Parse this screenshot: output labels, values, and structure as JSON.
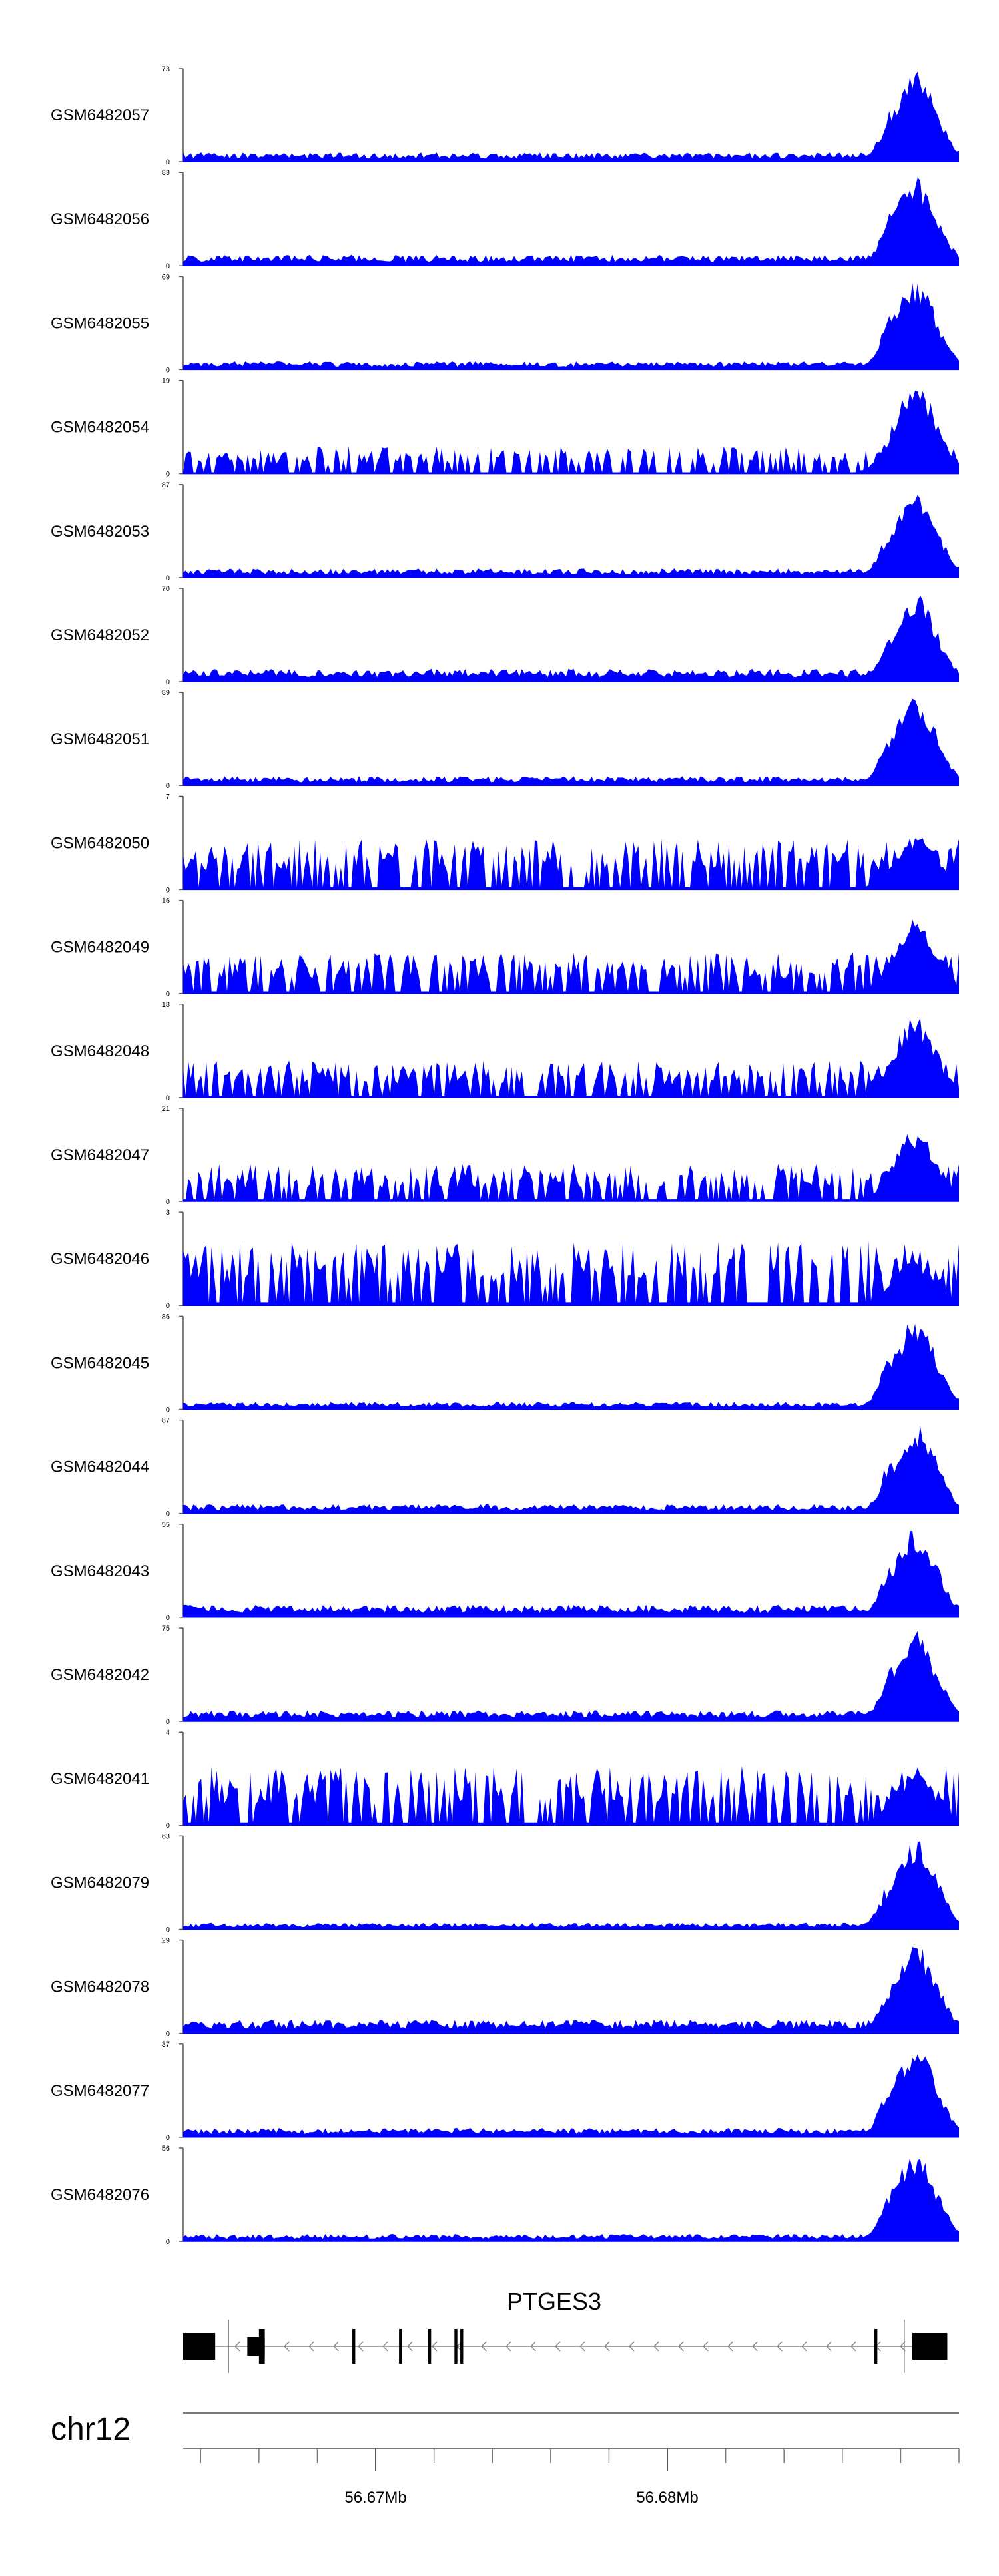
{
  "chart_data": {
    "type": "area",
    "tracks": [
      {
        "name": "GSM6482057",
        "ymin": "0",
        "ymax": "73",
        "max": 73,
        "noise": 0.1,
        "peak": 1.0,
        "seed": 11
      },
      {
        "name": "GSM6482056",
        "ymin": "0",
        "ymax": "83",
        "max": 83,
        "noise": 0.12,
        "peak": 1.0,
        "seed": 12
      },
      {
        "name": "GSM6482055",
        "ymin": "0",
        "ymax": "69",
        "max": 69,
        "noise": 0.09,
        "peak": 1.0,
        "seed": 13
      },
      {
        "name": "GSM6482054",
        "ymin": "0",
        "ymax": "19",
        "max": 19,
        "noise": 0.3,
        "peak": 1.0,
        "seed": 14
      },
      {
        "name": "GSM6482053",
        "ymin": "0",
        "ymax": "87",
        "max": 87,
        "noise": 0.1,
        "peak": 1.0,
        "seed": 15
      },
      {
        "name": "GSM6482052",
        "ymin": "0",
        "ymax": "70",
        "max": 70,
        "noise": 0.14,
        "peak": 1.0,
        "seed": 16
      },
      {
        "name": "GSM6482051",
        "ymin": "0",
        "ymax": "89",
        "max": 89,
        "noise": 0.1,
        "peak": 1.0,
        "seed": 17
      },
      {
        "name": "GSM6482050",
        "ymin": "0",
        "ymax": "7",
        "max": 7,
        "noise": 0.55,
        "peak": 0.6,
        "seed": 18
      },
      {
        "name": "GSM6482049",
        "ymin": "0",
        "ymax": "16",
        "max": 16,
        "noise": 0.45,
        "peak": 0.85,
        "seed": 19
      },
      {
        "name": "GSM6482048",
        "ymin": "0",
        "ymax": "18",
        "max": 18,
        "noise": 0.4,
        "peak": 0.9,
        "seed": 20
      },
      {
        "name": "GSM6482047",
        "ymin": "0",
        "ymax": "21",
        "max": 21,
        "noise": 0.42,
        "peak": 0.8,
        "seed": 21
      },
      {
        "name": "GSM6482046",
        "ymin": "0",
        "ymax": "3",
        "max": 3,
        "noise": 0.7,
        "peak": 0.5,
        "seed": 22
      },
      {
        "name": "GSM6482045",
        "ymin": "0",
        "ymax": "86",
        "max": 86,
        "noise": 0.08,
        "peak": 1.0,
        "seed": 23
      },
      {
        "name": "GSM6482044",
        "ymin": "0",
        "ymax": "87",
        "max": 87,
        "noise": 0.1,
        "peak": 1.0,
        "seed": 24
      },
      {
        "name": "GSM6482043",
        "ymin": "0",
        "ymax": "55",
        "max": 55,
        "noise": 0.14,
        "peak": 1.0,
        "seed": 25
      },
      {
        "name": "GSM6482042",
        "ymin": "0",
        "ymax": "75",
        "max": 75,
        "noise": 0.12,
        "peak": 1.0,
        "seed": 26
      },
      {
        "name": "GSM6482041",
        "ymin": "0",
        "ymax": "4",
        "max": 4,
        "noise": 0.65,
        "peak": 0.6,
        "seed": 27
      },
      {
        "name": "GSM6482079",
        "ymin": "0",
        "ymax": "63",
        "max": 63,
        "noise": 0.07,
        "peak": 1.0,
        "seed": 28
      },
      {
        "name": "GSM6482078",
        "ymin": "0",
        "ymax": "29",
        "max": 29,
        "noise": 0.15,
        "peak": 1.0,
        "seed": 29
      },
      {
        "name": "GSM6482077",
        "ymin": "0",
        "ymax": "37",
        "max": 37,
        "noise": 0.1,
        "peak": 1.0,
        "seed": 30
      },
      {
        "name": "GSM6482076",
        "ymin": "0",
        "ymax": "56",
        "max": 56,
        "noise": 0.08,
        "peak": 1.0,
        "seed": 31
      }
    ],
    "gene": {
      "name": "PTGES3",
      "strand": "-",
      "exons_mb": [
        [
          56.6634,
          56.6645,
          20
        ],
        [
          56.6656,
          56.6662,
          14
        ],
        [
          56.666,
          56.6662,
          26
        ],
        [
          56.6692,
          56.6693,
          26
        ],
        [
          56.6708,
          56.6709,
          26
        ],
        [
          56.6718,
          56.6719,
          26
        ],
        [
          56.6727,
          56.6728,
          26
        ],
        [
          56.6729,
          56.673,
          26
        ],
        [
          56.6871,
          56.6872,
          26
        ],
        [
          56.6884,
          56.6896,
          20
        ]
      ],
      "intron_mb": [
        56.6645,
        56.6884
      ]
    },
    "chromosome": "chr12",
    "axis": {
      "range_mb": [
        56.6634,
        56.69
      ],
      "major_ticks": [
        {
          "label": "56.67Mb",
          "mb": 56.67
        },
        {
          "label": "56.68Mb",
          "mb": 56.68
        }
      ],
      "minor_step_mb": 0.002
    },
    "fill_color": "#0000ff",
    "peak_center_mb": 56.6885
  }
}
